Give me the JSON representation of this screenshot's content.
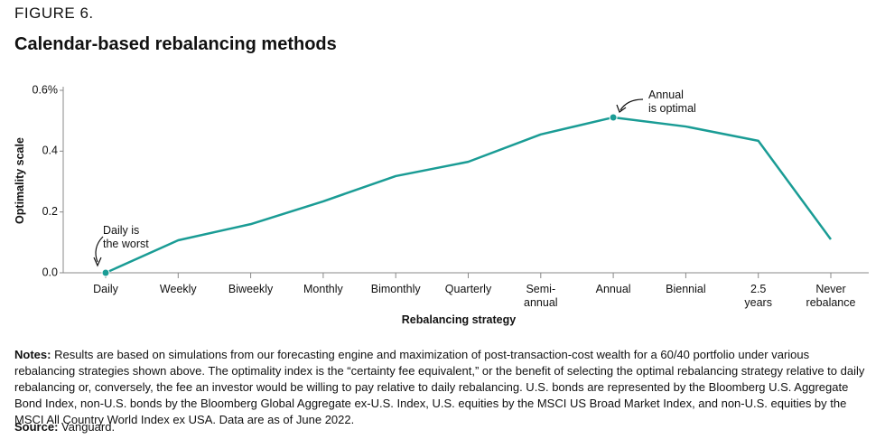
{
  "header": {
    "figure": "FIGURE 6.",
    "title": "Calendar-based rebalancing methods"
  },
  "chart_data": {
    "type": "line",
    "x_label": "Rebalancing strategy",
    "y_label": "Optimality scale",
    "categories": [
      "Daily",
      "Weekly",
      "Biweekly",
      "Monthly",
      "Bimonthly",
      "Quarterly",
      "Semi-\nannual",
      "Annual",
      "Biennial",
      "2.5\nyears",
      "Never\nrebalance"
    ],
    "values": [
      0,
      0.107,
      0.16,
      0.235,
      0.318,
      0.365,
      0.455,
      0.511,
      0.481,
      0.434,
      0.11
    ],
    "color": "#1a9c95",
    "ylim": [
      0,
      0.6
    ],
    "yticks": [
      {
        "value": 0,
        "label": "0.0"
      },
      0.2,
      0.4,
      {
        "value": 0.6,
        "label": "0.6%"
      }
    ],
    "annotations": [
      "Daily is\nthe worst",
      "Annual\nis optimal"
    ]
  },
  "notes": {
    "label": "Notes:",
    "text": "Results are based on simulations from our forecasting engine and maximization of post-transaction-cost wealth for a 60/40 portfolio under various rebalancing strategies shown above. The optimality index is the “certainty fee equivalent,” or the benefit of selecting the optimal rebalancing strategy relative to daily rebalancing or, conversely, the fee an investor would be willing to pay relative to daily rebalancing. U.S. bonds are represented by the Bloomberg U.S. Aggregate Bond Index, non-U.S. bonds by the Bloomberg Global Aggregate ex-U.S. Index, U.S. equities by the MSCI US Broad Market Index, and non-U.S. equities by the MSCI All Country World Index ex USA. Data are as of June 2022."
  },
  "source": {
    "label": "Source:",
    "text": "Vanguard."
  }
}
